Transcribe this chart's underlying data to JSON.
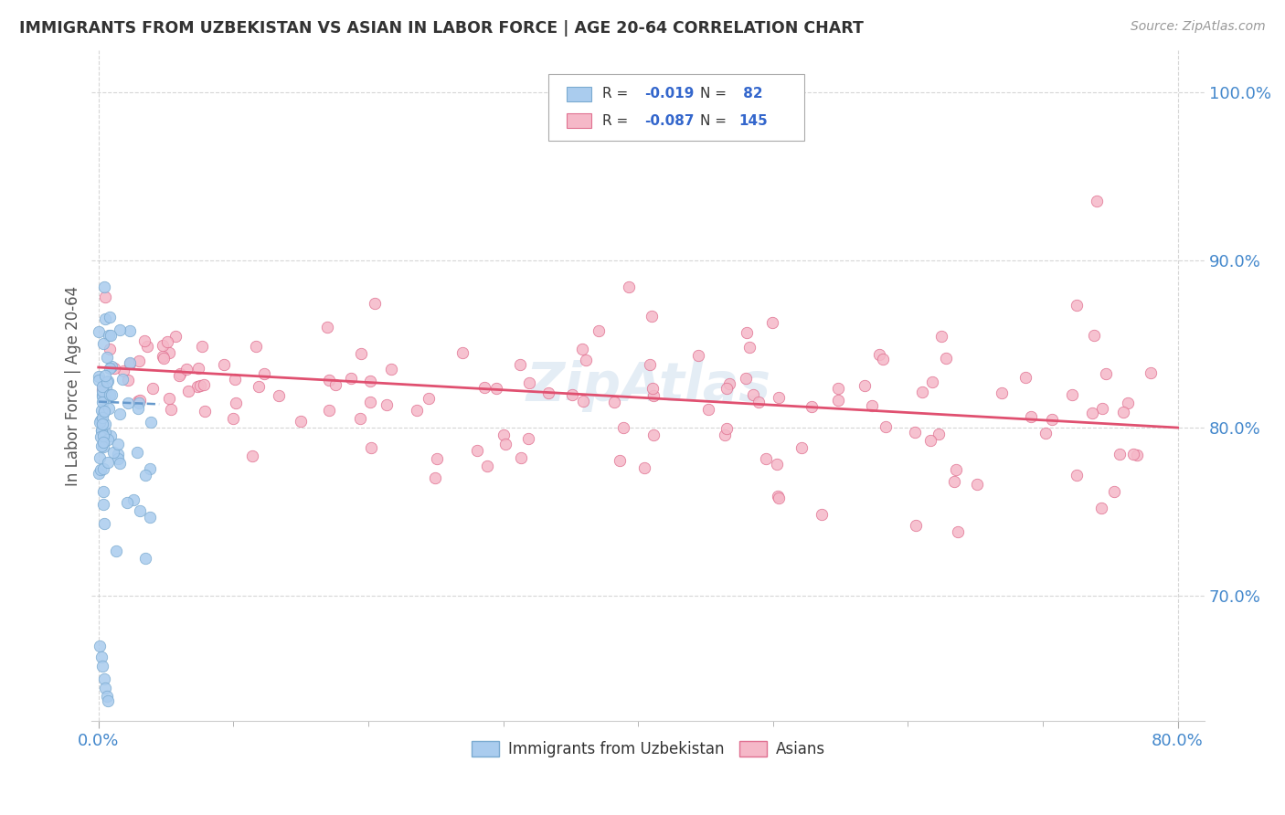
{
  "title": "IMMIGRANTS FROM UZBEKISTAN VS ASIAN IN LABOR FORCE | AGE 20-64 CORRELATION CHART",
  "source": "Source: ZipAtlas.com",
  "ylabel": "In Labor Force | Age 20-64",
  "xlim": [
    -0.005,
    0.82
  ],
  "ylim": [
    0.625,
    1.025
  ],
  "ytick_vals": [
    0.7,
    0.8,
    0.9,
    1.0
  ],
  "ytick_labels": [
    "70.0%",
    "80.0%",
    "90.0%",
    "100.0%"
  ],
  "xtick_vals": [
    0.0,
    0.8
  ],
  "xtick_labels": [
    "0.0%",
    "80.0%"
  ],
  "color_uzbek": "#aaccee",
  "color_uzbek_edge": "#7aaad0",
  "color_asian": "#f5b8c8",
  "color_asian_edge": "#e07090",
  "trendline_uzbek_color": "#6699cc",
  "trendline_asian_color": "#e05070",
  "watermark": "ZipAtlas",
  "legend_box_color": "#ffffff",
  "legend_box_edge": "#bbbbbb",
  "tick_color": "#4488cc",
  "grid_color": "#cccccc",
  "title_color": "#333333",
  "ylabel_color": "#555555"
}
